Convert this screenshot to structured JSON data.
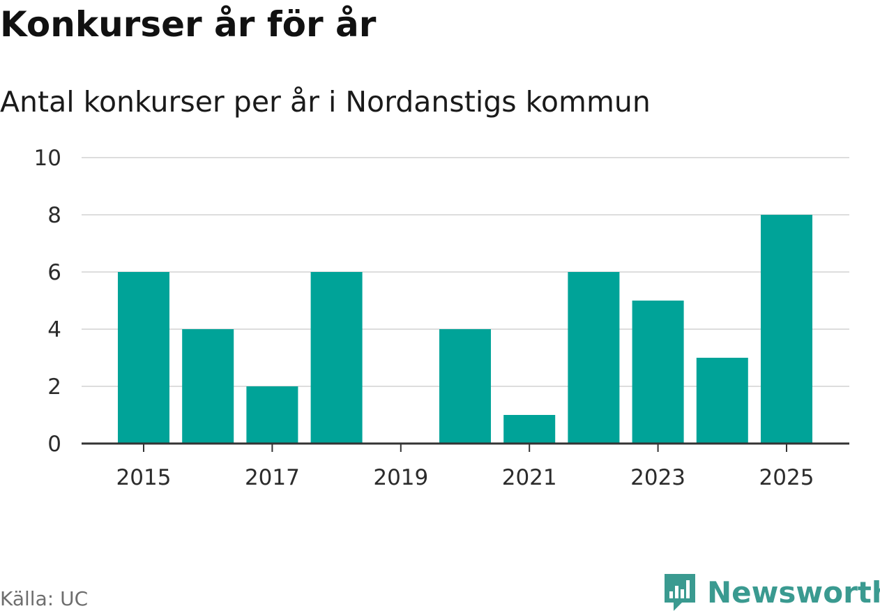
{
  "header": {
    "title": "Konkurser år för år",
    "subtitle": "Antal konkurser per år i Nordanstigs kommun"
  },
  "footer": {
    "source": "Källa: UC",
    "brand": "Newsworthy",
    "brand_icon": "bar-chart-speech-bubble-icon"
  },
  "colors": {
    "bar": "#00a398",
    "grid": "#dddddd",
    "axis": "#333333",
    "brand": "#3a9a90"
  },
  "chart_data": {
    "type": "bar",
    "title": "Konkurser år för år",
    "subtitle": "Antal konkurser per år i Nordanstigs kommun",
    "categories": [
      2015,
      2016,
      2017,
      2018,
      2019,
      2020,
      2021,
      2022,
      2023,
      2024,
      2025
    ],
    "values": [
      6,
      4,
      2,
      6,
      0,
      4,
      1,
      6,
      5,
      3,
      8
    ],
    "x_tick_labels": [
      "2015",
      "2017",
      "2019",
      "2021",
      "2023",
      "2025"
    ],
    "y_ticks": [
      0,
      2,
      4,
      6,
      8,
      10
    ],
    "ylim": [
      0,
      10
    ],
    "xlabel": "",
    "ylabel": "",
    "grid": true,
    "legend": "none"
  }
}
